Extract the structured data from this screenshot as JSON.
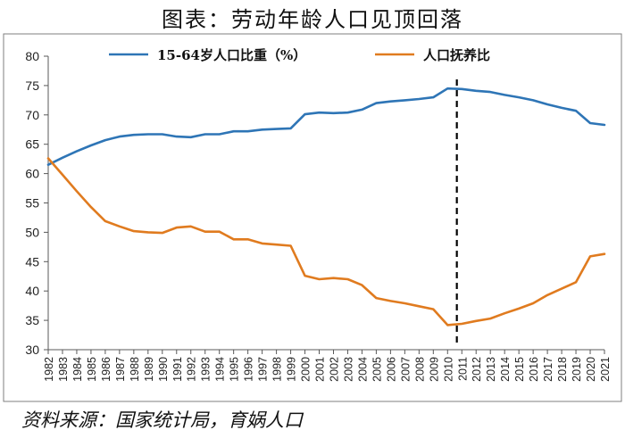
{
  "title": "图表：劳动年龄人口见顶回落",
  "source": "资料来源：国家统计局，育娲人口",
  "colors": {
    "series1": "#2E75B6",
    "series2": "#E07B1F",
    "axis": "#595959",
    "border": "#7f7f7f"
  },
  "chart_data": {
    "type": "line",
    "x": [
      1982,
      1983,
      1984,
      1985,
      1986,
      1987,
      1988,
      1989,
      1990,
      1991,
      1992,
      1993,
      1994,
      1995,
      1996,
      1997,
      1998,
      1999,
      2000,
      2001,
      2002,
      2003,
      2004,
      2005,
      2006,
      2007,
      2008,
      2009,
      2010,
      2011,
      2012,
      2013,
      2014,
      2015,
      2016,
      2017,
      2018,
      2019,
      2020,
      2021
    ],
    "x_tick_labels": [
      "1982",
      "1983",
      "1984",
      "1985",
      "1986",
      "1987",
      "1988",
      "1989",
      "1990",
      "1991",
      "1992",
      "1993",
      "1994",
      "1995",
      "1996",
      "1997",
      "1998",
      "1999",
      "2000",
      "2001",
      "2002",
      "2003",
      "2004",
      "2005",
      "2006",
      "2007",
      "2008",
      "2009",
      "2010",
      "2011",
      "2012",
      "2013",
      "2014",
      "2015",
      "2016",
      "2017",
      "2018",
      "2019",
      "2020",
      "2021"
    ],
    "y_ticks": [
      30,
      35,
      40,
      45,
      50,
      55,
      60,
      65,
      70,
      75,
      80
    ],
    "ylim": [
      30,
      80
    ],
    "series": [
      {
        "name": "15-64岁人口比重（%）",
        "color": "#2E75B6",
        "values": [
          61.5,
          62.7,
          63.8,
          64.8,
          65.7,
          66.3,
          66.6,
          66.7,
          66.7,
          66.3,
          66.2,
          66.7,
          66.7,
          67.2,
          67.2,
          67.5,
          67.6,
          67.7,
          70.1,
          70.4,
          70.3,
          70.4,
          70.9,
          72.0,
          72.3,
          72.5,
          72.7,
          73.0,
          74.5,
          74.4,
          74.1,
          73.9,
          73.4,
          73.0,
          72.5,
          71.8,
          71.2,
          70.7,
          68.6,
          68.3
        ]
      },
      {
        "name": "人口抚养比",
        "color": "#E07B1F",
        "values": [
          62.6,
          59.8,
          57.0,
          54.3,
          51.9,
          51.0,
          50.2,
          50.0,
          49.9,
          50.8,
          51.0,
          50.1,
          50.1,
          48.8,
          48.8,
          48.1,
          47.9,
          47.7,
          42.6,
          42.0,
          42.2,
          42.0,
          41.0,
          38.8,
          38.3,
          37.9,
          37.4,
          36.9,
          34.2,
          34.4,
          34.9,
          35.3,
          36.2,
          37.0,
          37.9,
          39.3,
          40.4,
          41.5,
          45.9,
          46.3
        ]
      }
    ],
    "reference_line": {
      "x": 2011,
      "style": "dashed",
      "color": "#000000"
    },
    "legend_position": "top",
    "grid": false
  }
}
